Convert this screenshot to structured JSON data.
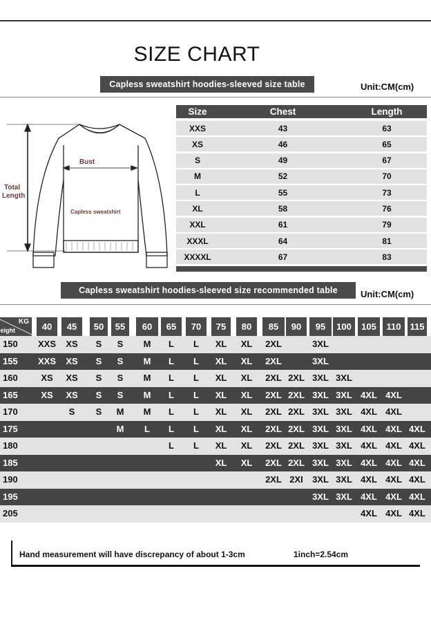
{
  "title": "SIZE CHART",
  "size_table": {
    "banner": "Capless sweatshirt hoodies-sleeved size  table",
    "unit": "Unit:CM(cm)",
    "headers": [
      "Size",
      "Chest",
      "Length"
    ],
    "rows": [
      [
        "XXS",
        "43",
        "63"
      ],
      [
        "XS",
        "46",
        "65"
      ],
      [
        "S",
        "49",
        "67"
      ],
      [
        "M",
        "52",
        "70"
      ],
      [
        "L",
        "55",
        "73"
      ],
      [
        "XL",
        "58",
        "76"
      ],
      [
        "XXL",
        "61",
        "79"
      ],
      [
        "XXXL",
        "64",
        "81"
      ],
      [
        "XXXXL",
        "67",
        "83"
      ]
    ]
  },
  "diagram": {
    "bust_label": "Bust",
    "length_label_1": "Total",
    "length_label_2": "Length",
    "garment_label": "Capless sweatshirt"
  },
  "recommend_table": {
    "banner": "Capless sweatshirt hoodies-sleeved size recommended table",
    "unit": "Unit:CM(cm)",
    "corner_kg": "KG",
    "corner_height": "Height",
    "weights": [
      "40",
      "45",
      "50",
      "55",
      "60",
      "65",
      "70",
      "75",
      "80",
      "85",
      "90",
      "95",
      "100",
      "105",
      "110",
      "115"
    ],
    "rows": [
      {
        "height": "150",
        "sizes": [
          "XXS",
          "XS",
          "S",
          "S",
          "M",
          "L",
          "L",
          "XL",
          "XL",
          "2XL",
          "",
          "3XL",
          "",
          "",
          "",
          ""
        ]
      },
      {
        "height": "155",
        "sizes": [
          "XXS",
          "XS",
          "S",
          "S",
          "M",
          "L",
          "L",
          "XL",
          "XL",
          "2XL",
          "",
          "3XL",
          "",
          "",
          "",
          ""
        ]
      },
      {
        "height": "160",
        "sizes": [
          "XS",
          "XS",
          "S",
          "S",
          "M",
          "L",
          "L",
          "XL",
          "XL",
          "2XL",
          "2XL",
          "3XL",
          "3XL",
          "",
          "",
          ""
        ]
      },
      {
        "height": "165",
        "sizes": [
          "XS",
          "XS",
          "S",
          "S",
          "M",
          "L",
          "L",
          "XL",
          "XL",
          "2XL",
          "2XL",
          "3XL",
          "3XL",
          "4XL",
          "4XL",
          ""
        ]
      },
      {
        "height": "170",
        "sizes": [
          "",
          "S",
          "S",
          "M",
          "M",
          "L",
          "L",
          "XL",
          "XL",
          "2XL",
          "2XL",
          "3XL",
          "3XL",
          "4XL",
          "4XL",
          ""
        ]
      },
      {
        "height": "175",
        "sizes": [
          "",
          "",
          "",
          "M",
          "L",
          "L",
          "L",
          "XL",
          "XL",
          "2XL",
          "2XL",
          "3XL",
          "3XL",
          "4XL",
          "4XL",
          "4XL"
        ]
      },
      {
        "height": "180",
        "sizes": [
          "",
          "",
          "",
          "",
          "",
          "L",
          "L",
          "XL",
          "XL",
          "2XL",
          "2XL",
          "3XL",
          "3XL",
          "4XL",
          "4XL",
          "4XL"
        ]
      },
      {
        "height": "185",
        "sizes": [
          "",
          "",
          "",
          "",
          "",
          "",
          "",
          "XL",
          "XL",
          "2XL",
          "2XL",
          "3XL",
          "3XL",
          "4XL",
          "4XL",
          "4XL"
        ]
      },
      {
        "height": "190",
        "sizes": [
          "",
          "",
          "",
          "",
          "",
          "",
          "",
          "",
          "",
          "2XL",
          "2XI",
          "3XL",
          "3XL",
          "4XL",
          "4XL",
          "4XL"
        ]
      },
      {
        "height": "195",
        "sizes": [
          "",
          "",
          "",
          "",
          "",
          "",
          "",
          "",
          "",
          "",
          "",
          "3XL",
          "3XL",
          "4XL",
          "4XL",
          "4XL"
        ]
      },
      {
        "height": "205",
        "sizes": [
          "",
          "",
          "",
          "",
          "",
          "",
          "",
          "",
          "",
          "",
          "",
          "",
          "",
          "4XL",
          "4XL",
          "4XL"
        ]
      }
    ]
  },
  "footer": {
    "note": "Hand measurement will have discrepancy of about  1-3cm",
    "conversion": "1inch=2.54cm"
  },
  "colors": {
    "header_bg": "#4a4a4a",
    "row_light": "#e3e3e3",
    "row_dark": "#444444"
  }
}
